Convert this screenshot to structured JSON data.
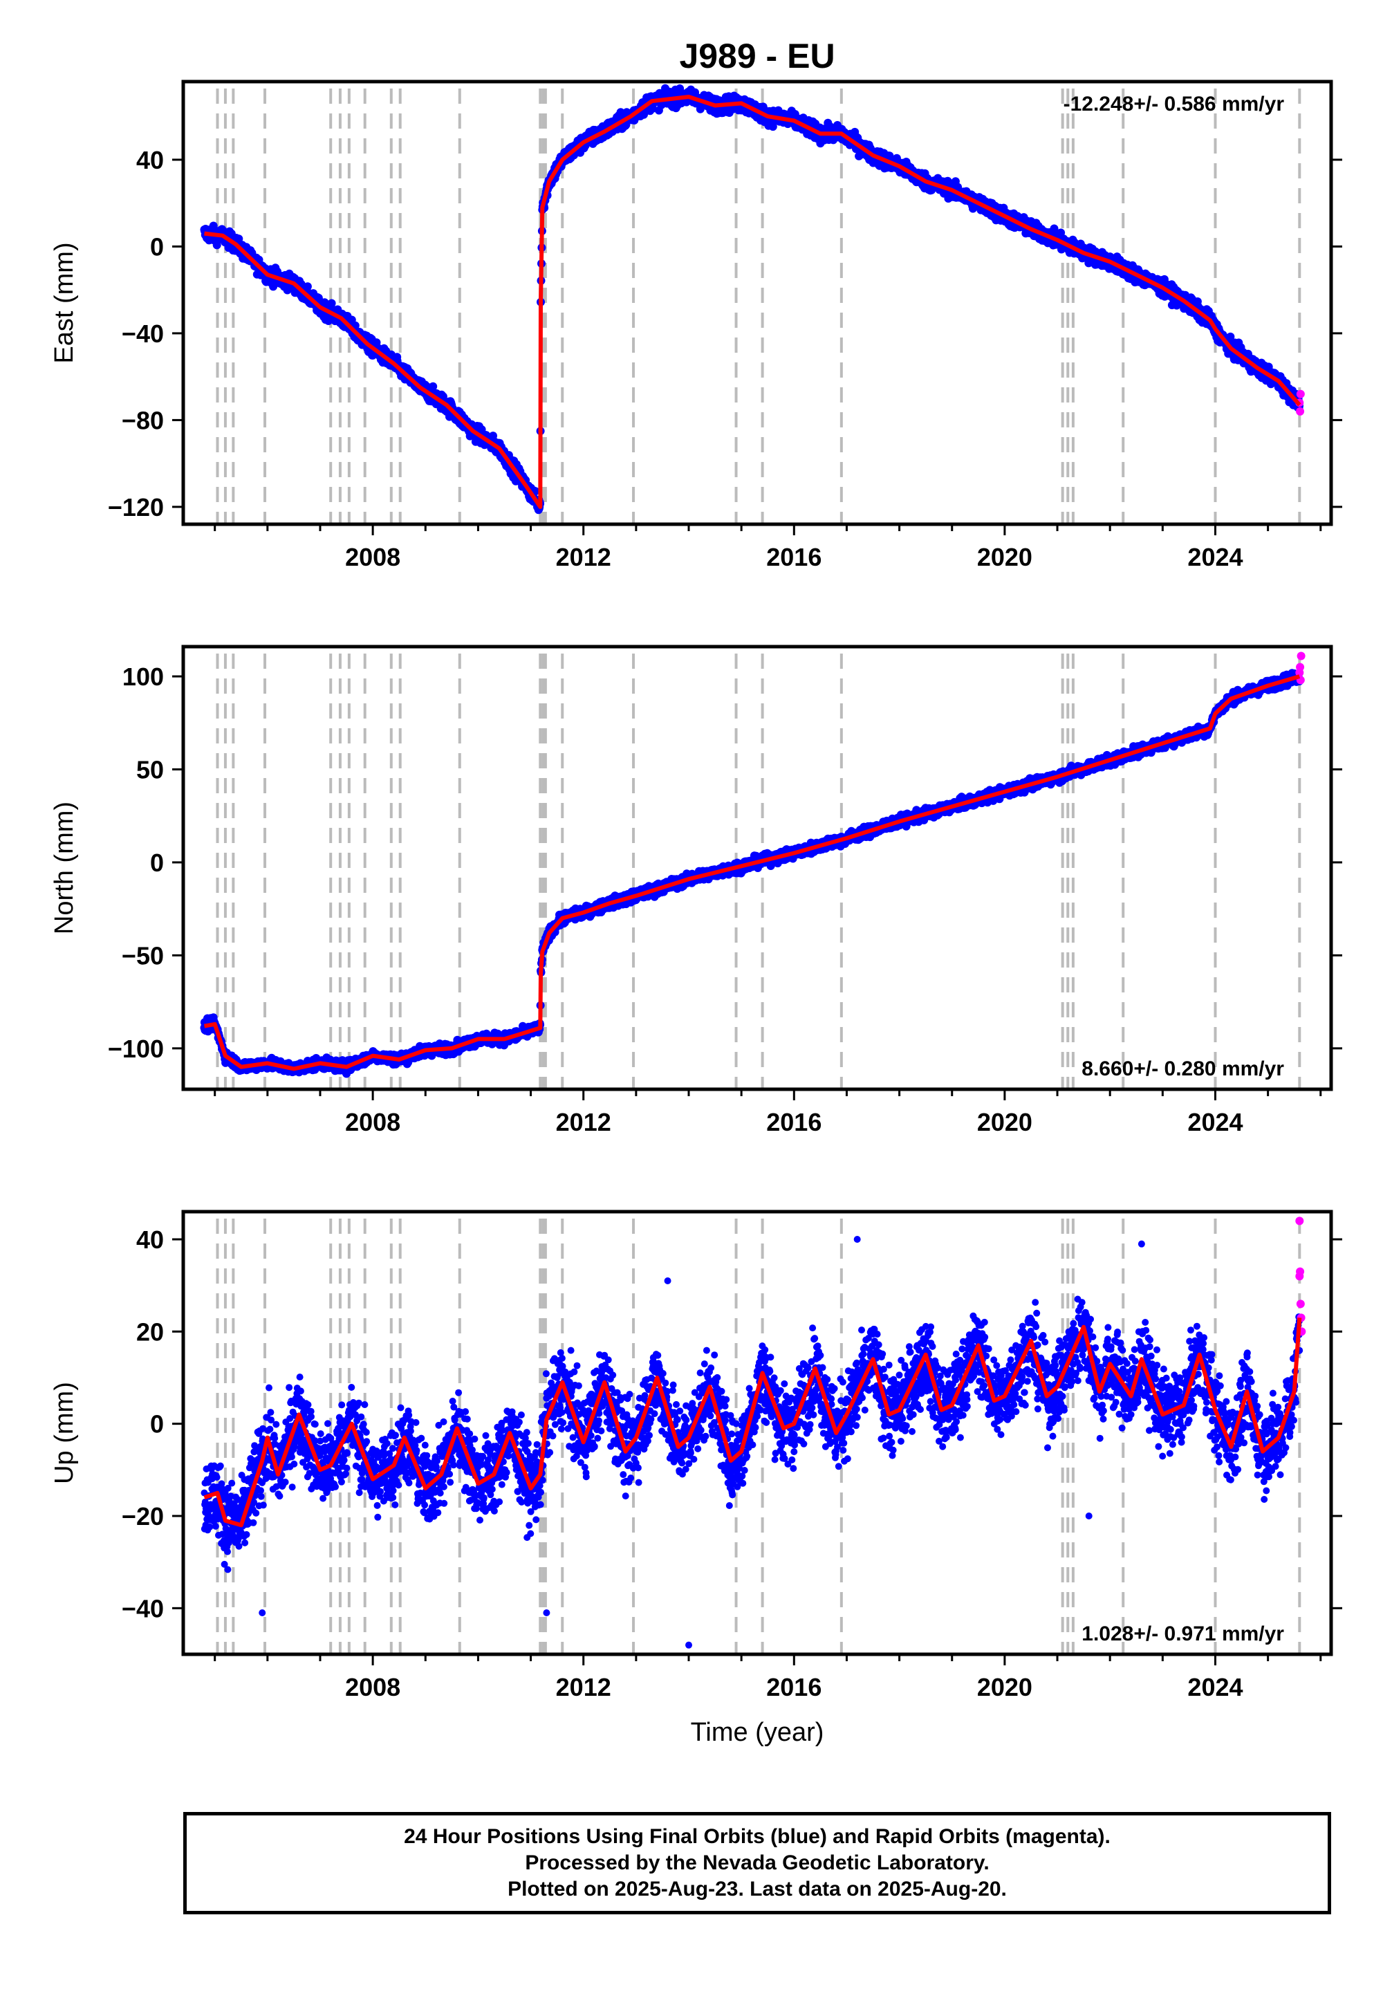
{
  "chart_data": {
    "type": "scatter",
    "title": "J989 - EU",
    "xlabel": "Time (year)",
    "xlim": [
      2004.4,
      2026.2
    ],
    "xticks": [
      2008,
      2012,
      2016,
      2020,
      2024
    ],
    "xtick_labels": [
      "2008",
      "2012",
      "2016",
      "2020",
      "2024"
    ],
    "legend_note": "24 Hour Positions Using Final Orbits (blue) and Rapid Orbits (magenta).",
    "colors": {
      "final": "#0000ff",
      "rapid": "#ff00ff",
      "model": "#ff0000",
      "events": "#bbbbbb"
    },
    "event_lines": [
      2005.05,
      2005.2,
      2005.35,
      2005.95,
      2007.2,
      2007.38,
      2007.55,
      2007.85,
      2008.35,
      2008.52,
      2009.65,
      2011.18,
      2011.23,
      2011.28,
      2011.6,
      2012.95,
      2014.9,
      2015.4,
      2016.9,
      2021.1,
      2021.2,
      2021.3,
      2022.25,
      2024.0,
      2025.6
    ],
    "panels": [
      {
        "name": "East",
        "ylabel": "East (mm)",
        "ylim": [
          -128,
          76
        ],
        "yticks": [
          -120,
          -80,
          -40,
          0,
          40
        ],
        "ytick_labels": [
          "−120",
          "−80",
          "−40",
          "0",
          "40"
        ],
        "rate": "-12.248+/- 0.586 mm/yr",
        "rate_pos": "top-right",
        "model_x": [
          2004.8,
          2005.15,
          2005.4,
          2006.0,
          2006.5,
          2007.0,
          2007.4,
          2007.9,
          2008.4,
          2008.9,
          2009.4,
          2009.9,
          2010.4,
          2010.9,
          2011.18,
          2011.19,
          2011.22,
          2011.35,
          2011.6,
          2012.0,
          2012.4,
          2012.9,
          2013.3,
          2014.0,
          2014.5,
          2015.0,
          2015.5,
          2016.0,
          2016.5,
          2016.9,
          2017.5,
          2018.0,
          2018.5,
          2019.0,
          2019.5,
          2020.0,
          2020.5,
          2021.0,
          2021.5,
          2022.0,
          2022.5,
          2023.0,
          2023.4,
          2023.9,
          2024.0,
          2024.3,
          2024.8,
          2025.2,
          2025.6
        ],
        "model_y": [
          6,
          5,
          1,
          -13,
          -17,
          -28,
          -33,
          -45,
          -54,
          -65,
          -73,
          -85,
          -93,
          -110,
          -120,
          -25,
          18,
          30,
          40,
          48,
          53,
          60,
          67,
          69,
          65,
          66,
          60,
          58,
          52,
          52,
          42,
          37,
          30,
          26,
          20,
          14,
          8,
          3,
          -3,
          -7,
          -13,
          -19,
          -25,
          -34,
          -38,
          -47,
          -56,
          -62,
          -73
        ],
        "noise": 2.5,
        "rapid_x": [
          2025.6,
          2025.61,
          2025.62
        ],
        "rapid_y": [
          -72,
          -76,
          -68
        ]
      },
      {
        "name": "North",
        "ylabel": "North (mm)",
        "ylim": [
          -122,
          116
        ],
        "yticks": [
          -100,
          -50,
          0,
          50,
          100
        ],
        "ytick_labels": [
          "−100",
          "−50",
          "0",
          "50",
          "100"
        ],
        "rate": "8.660+/- 0.280 mm/yr",
        "rate_pos": "bottom-right",
        "model_x": [
          2004.8,
          2005.0,
          2005.2,
          2005.5,
          2006.0,
          2006.5,
          2007.0,
          2007.5,
          2008.0,
          2008.5,
          2009.0,
          2009.5,
          2010.0,
          2010.5,
          2011.18,
          2011.19,
          2011.22,
          2011.35,
          2011.6,
          2012.0,
          2012.5,
          2013.0,
          2014.0,
          2015.0,
          2016.0,
          2017.0,
          2018.0,
          2019.0,
          2020.0,
          2021.0,
          2022.0,
          2023.0,
          2023.9,
          2024.0,
          2024.3,
          2025.0,
          2025.6
        ],
        "model_y": [
          -88,
          -87,
          -104,
          -110,
          -108,
          -111,
          -108,
          -110,
          -104,
          -106,
          -101,
          -100,
          -95,
          -95,
          -89,
          -60,
          -48,
          -38,
          -30,
          -27,
          -22,
          -18,
          -9,
          -2,
          5,
          13,
          22,
          30,
          38,
          46,
          55,
          64,
          72,
          80,
          88,
          95,
          100
        ],
        "noise": 2.0,
        "rapid_x": [
          2025.6,
          2025.61,
          2025.62,
          2025.63
        ],
        "rapid_y": [
          102,
          105,
          98,
          111
        ]
      },
      {
        "name": "Up",
        "ylabel": "Up (mm)",
        "ylim": [
          -50,
          46
        ],
        "yticks": [
          -40,
          -20,
          0,
          20,
          40
        ],
        "ytick_labels": [
          "−40",
          "−20",
          "0",
          "20",
          "40"
        ],
        "rate": "1.028+/- 0.971 mm/yr",
        "rate_pos": "bottom-right",
        "model_x": [
          2004.8,
          2005.05,
          2005.2,
          2005.5,
          2005.9,
          2006.0,
          2006.2,
          2006.6,
          2007.0,
          2007.2,
          2007.6,
          2008.0,
          2008.4,
          2008.6,
          2009.0,
          2009.3,
          2009.6,
          2010.0,
          2010.3,
          2010.6,
          2011.0,
          2011.18,
          2011.3,
          2011.6,
          2012.0,
          2012.4,
          2012.8,
          2013.0,
          2013.4,
          2013.8,
          2014.0,
          2014.4,
          2014.8,
          2015.0,
          2015.4,
          2015.8,
          2016.0,
          2016.4,
          2016.8,
          2017.0,
          2017.5,
          2017.8,
          2018.0,
          2018.5,
          2018.8,
          2019.0,
          2019.5,
          2019.8,
          2020.0,
          2020.5,
          2020.8,
          2021.0,
          2021.5,
          2021.8,
          2022.0,
          2022.4,
          2022.6,
          2023.0,
          2023.4,
          2023.7,
          2024.0,
          2024.3,
          2024.6,
          2024.9,
          2025.2,
          2025.5,
          2025.6
        ],
        "model_y": [
          -16,
          -15,
          -21,
          -22,
          -8,
          -3,
          -11,
          2,
          -10,
          -9,
          0,
          -12,
          -9,
          -3,
          -14,
          -11,
          -1,
          -13,
          -11,
          -2,
          -14,
          -11,
          1,
          9,
          -4,
          9,
          -6,
          -3,
          10,
          -5,
          -3,
          8,
          -8,
          -6,
          11,
          -1,
          0,
          12,
          -2,
          2,
          14,
          2,
          3,
          15,
          3,
          4,
          17,
          5,
          6,
          18,
          6,
          8,
          21,
          7,
          13,
          6,
          14,
          2,
          4,
          15,
          3,
          -5,
          7,
          -6,
          -3,
          7,
          23
        ],
        "noise": 6.0,
        "rapid_x": [
          2025.6,
          2025.61,
          2025.62,
          2025.63,
          2025.64,
          2025.6
        ],
        "rapid_y": [
          44,
          33,
          26,
          23,
          20,
          32
        ]
      }
    ]
  },
  "footer": {
    "line1": "24 Hour Positions Using Final Orbits (blue) and Rapid Orbits (magenta).",
    "line2": "Processed by the Nevada Geodetic Laboratory.",
    "line3": "Plotted on 2025-Aug-23. Last data on 2025-Aug-20."
  }
}
